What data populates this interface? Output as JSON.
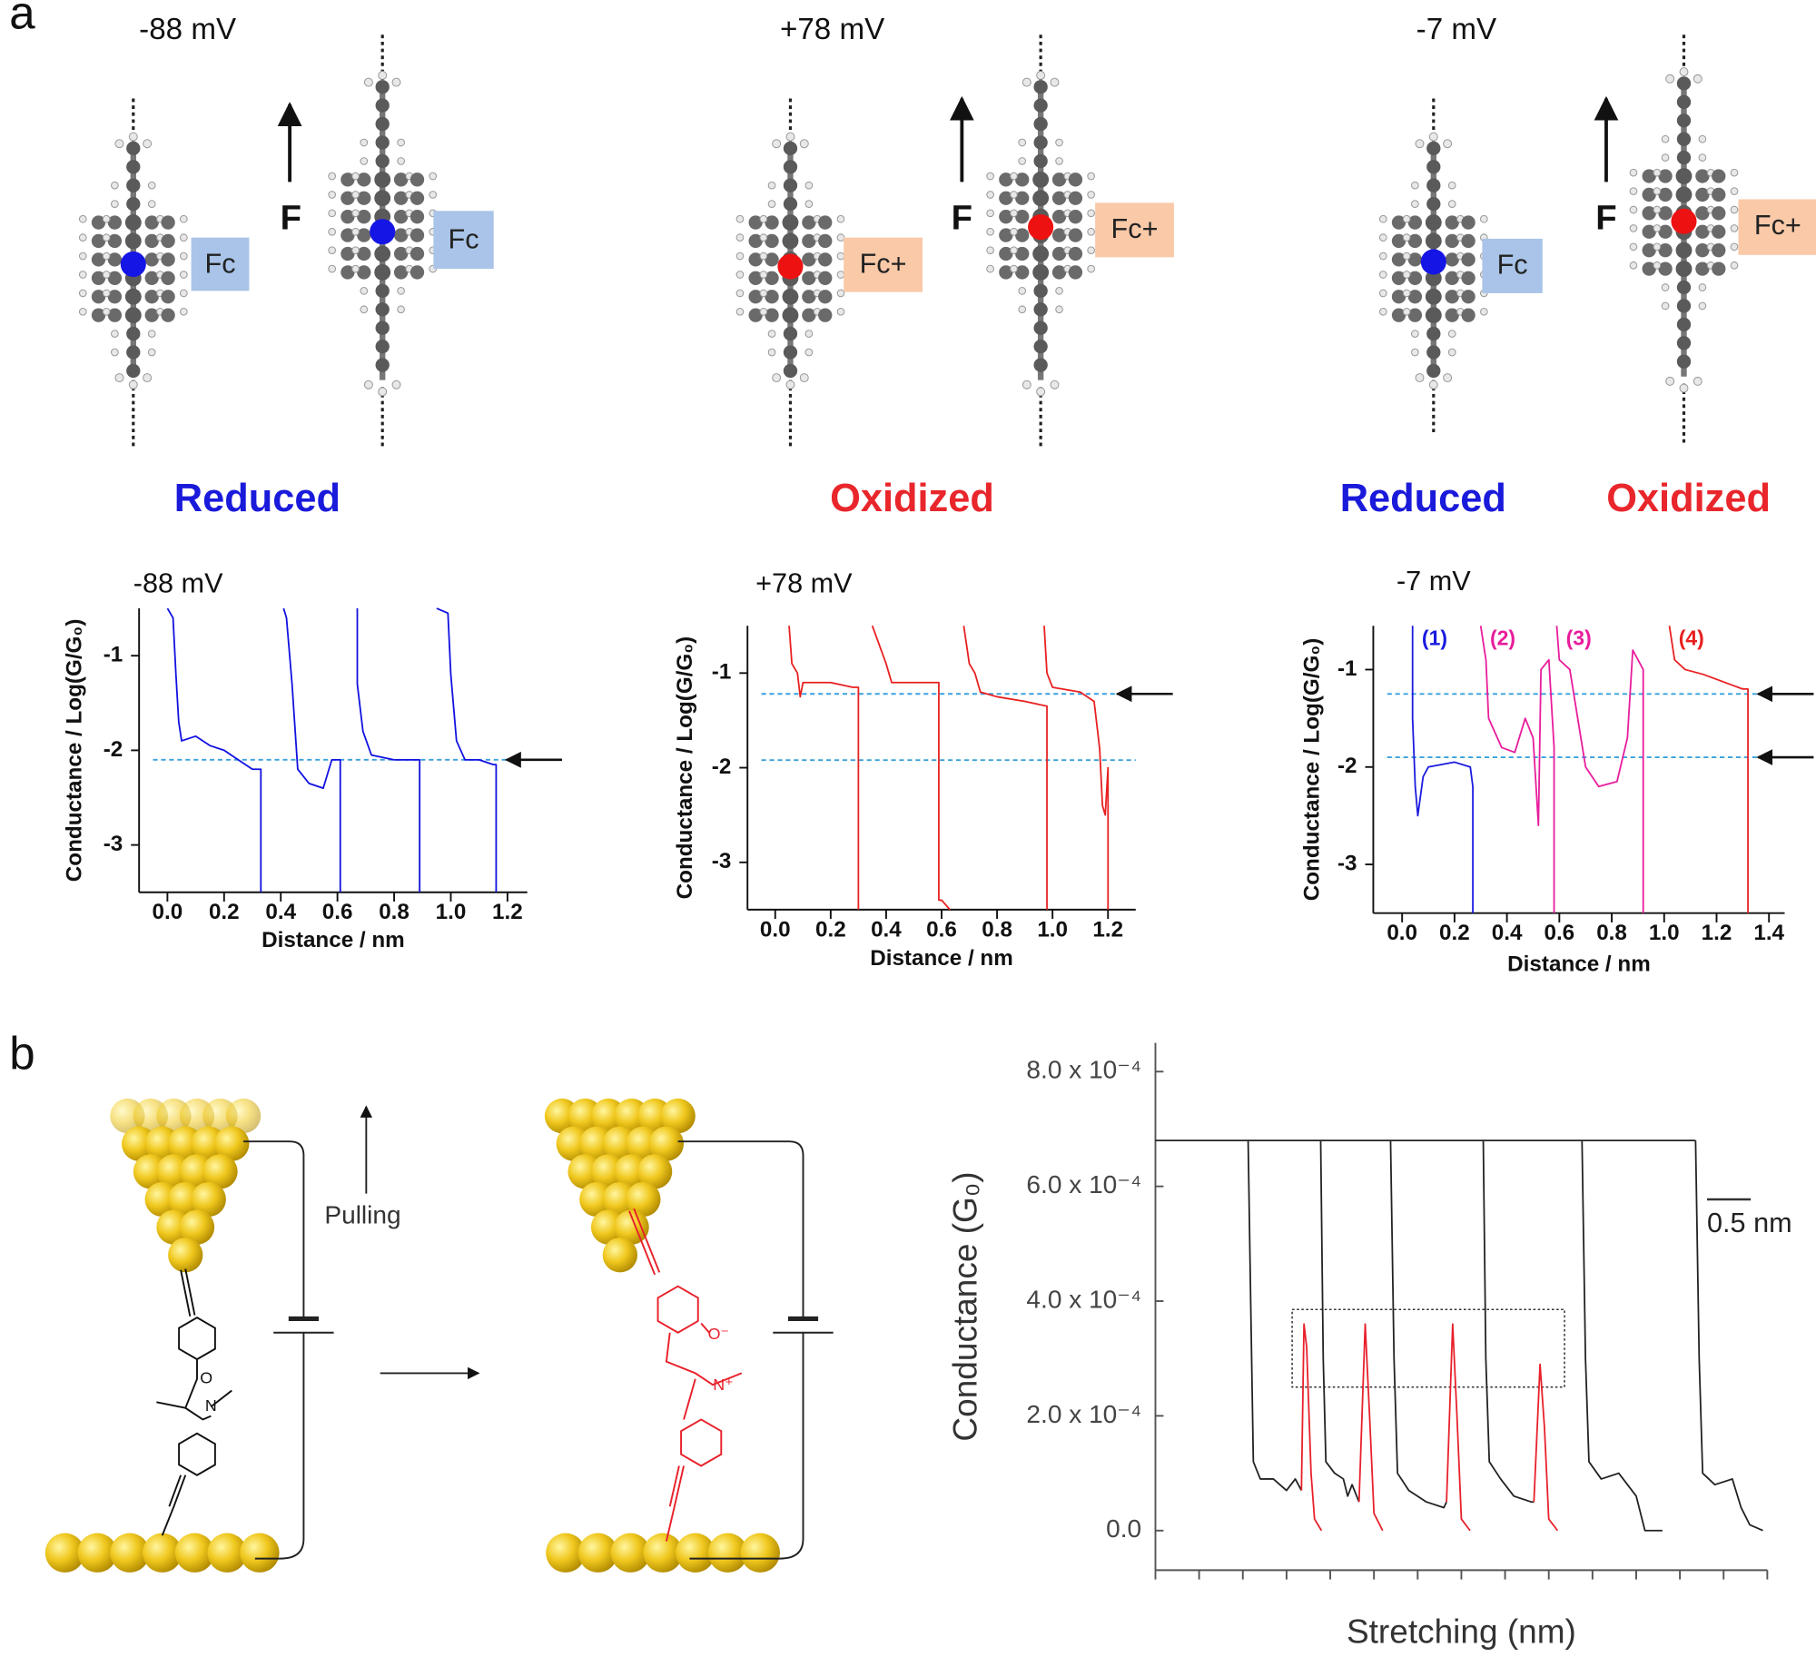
{
  "panel_labels": [
    "a",
    "b"
  ],
  "panel_a": {
    "potentials": [
      "-88 mV",
      "+78 mV",
      "-7 mV"
    ],
    "force_labels": [
      "F",
      "F",
      "F"
    ],
    "tags": [
      "Fc",
      "Fc",
      "Fc+",
      "Fc+",
      "Fc",
      "Fc+"
    ],
    "states": [
      "Reduced",
      "Oxidized",
      "Reduced",
      "Oxidized"
    ]
  },
  "panel_b": {
    "pulling": "Pulling",
    "atoms": [
      "O",
      "N",
      "O⁻",
      "N⁺"
    ]
  },
  "chart_data": [
    {
      "type": "line",
      "title": "-88 mV",
      "xlabel": "Distance / nm",
      "ylabel": "Conductance / Log(G/G₀)",
      "xlim": [
        -0.1,
        1.27
      ],
      "ylim": [
        -3.5,
        -0.5
      ],
      "xticks": [
        {
          "value": 0,
          "label": "0.0"
        },
        0.2,
        0.4,
        0.6,
        0.8,
        {
          "value": 1,
          "label": "1.0"
        },
        1.2
      ],
      "yticks": [
        -1,
        -2,
        -3
      ],
      "reference_lines": [
        -2.1
      ],
      "series": [
        {
          "color": "#1010e0",
          "x": [
            0.0,
            0.02,
            0.03,
            0.04,
            0.05,
            0.1,
            0.15,
            0.2,
            0.25,
            0.3,
            0.33,
            0.33
          ],
          "values": [
            -0.5,
            -0.6,
            -1.2,
            -1.7,
            -1.9,
            -1.85,
            -1.95,
            -2.0,
            -2.1,
            -2.2,
            -2.2,
            -3.5
          ]
        },
        {
          "color": "#1010e0",
          "x": [
            0.41,
            0.42,
            0.44,
            0.46,
            0.5,
            0.55,
            0.58,
            0.61,
            0.61
          ],
          "values": [
            -0.5,
            -0.6,
            -1.3,
            -2.2,
            -2.35,
            -2.4,
            -2.1,
            -2.1,
            -3.5
          ]
        },
        {
          "color": "#1010e0",
          "x": [
            0.67,
            0.67,
            0.69,
            0.72,
            0.8,
            0.88,
            0.89,
            0.89
          ],
          "values": [
            -0.5,
            -1.3,
            -1.8,
            -2.05,
            -2.1,
            -2.1,
            -2.1,
            -3.5
          ]
        },
        {
          "color": "#1010e0",
          "x": [
            0.95,
            0.99,
            1.0,
            1.02,
            1.05,
            1.1,
            1.15,
            1.16,
            1.16
          ],
          "values": [
            -0.5,
            -0.55,
            -1.2,
            -1.9,
            -2.1,
            -2.1,
            -2.15,
            -2.15,
            -3.5
          ]
        }
      ]
    },
    {
      "type": "line",
      "title": "+78 mV",
      "xlabel": "Distance / nm",
      "ylabel": "Conductance / Log(G/G₀)",
      "xlim": [
        -0.1,
        1.3
      ],
      "ylim": [
        -3.5,
        -0.5
      ],
      "xticks": [
        {
          "value": 0,
          "label": "0.0"
        },
        0.2,
        0.4,
        0.6,
        0.8,
        {
          "value": 1,
          "label": "1.0"
        },
        1.2
      ],
      "yticks": [
        -1,
        -2,
        -3
      ],
      "reference_lines": [
        -1.22,
        -1.92
      ],
      "series": [
        {
          "color": "#e82020",
          "x": [
            0.05,
            0.06,
            0.08,
            0.09,
            0.1,
            0.2,
            0.28,
            0.3,
            0.3
          ],
          "values": [
            -0.5,
            -0.9,
            -1.0,
            -1.25,
            -1.1,
            -1.1,
            -1.15,
            -1.15,
            -3.5
          ]
        },
        {
          "color": "#e82020",
          "x": [
            0.35,
            0.4,
            0.42,
            0.5,
            0.58,
            0.59,
            0.59,
            0.6,
            0.63
          ],
          "values": [
            -0.5,
            -0.9,
            -1.1,
            -1.1,
            -1.1,
            -1.1,
            -3.4,
            -3.4,
            -3.5
          ]
        },
        {
          "color": "#e82020",
          "x": [
            0.68,
            0.7,
            0.72,
            0.74,
            0.8,
            0.9,
            0.98,
            0.98
          ],
          "values": [
            -0.5,
            -0.9,
            -1.0,
            -1.2,
            -1.25,
            -1.3,
            -1.35,
            -3.5
          ]
        },
        {
          "color": "#e82020",
          "x": [
            0.97,
            0.98,
            1.0,
            1.1,
            1.15,
            1.17,
            1.18,
            1.19,
            1.2,
            1.2
          ],
          "values": [
            -0.5,
            -1.0,
            -1.15,
            -1.2,
            -1.3,
            -1.8,
            -2.4,
            -2.5,
            -2.0,
            -3.5
          ]
        }
      ]
    },
    {
      "type": "line",
      "title": "-7 mV",
      "xlabel": "Distance / nm",
      "ylabel": "Conductance / Log(G/G₀)",
      "xlim": [
        -0.11,
        1.46
      ],
      "ylim": [
        -3.5,
        -0.55
      ],
      "xticks": [
        {
          "value": 0,
          "label": "0.0"
        },
        0.2,
        0.4,
        0.6,
        0.8,
        {
          "value": 1,
          "label": "1.0"
        },
        1.2,
        1.4
      ],
      "yticks": [
        -1,
        -2,
        -3
      ],
      "reference_lines": [
        -1.25,
        -1.9
      ],
      "series": [
        {
          "name": "(1)",
          "color": "#1a1ae0",
          "x": [
            0.04,
            0.04,
            0.05,
            0.06,
            0.08,
            0.1,
            0.2,
            0.26,
            0.27,
            0.27
          ],
          "values": [
            -0.55,
            -1.5,
            -2.2,
            -2.5,
            -2.1,
            -2.0,
            -1.95,
            -2.0,
            -2.2,
            -3.5
          ]
        },
        {
          "name": "(2)",
          "color": "#e81c9c",
          "x": [
            0.3,
            0.32,
            0.33,
            0.38,
            0.43,
            0.47,
            0.5,
            0.52,
            0.53,
            0.56,
            0.58,
            0.58
          ],
          "values": [
            -0.55,
            -0.9,
            -1.5,
            -1.8,
            -1.85,
            -1.5,
            -1.7,
            -2.6,
            -1.0,
            -0.9,
            -1.8,
            -3.5
          ]
        },
        {
          "name": "(3)",
          "color": "#e81c9c",
          "x": [
            0.59,
            0.6,
            0.64,
            0.67,
            0.7,
            0.75,
            0.82,
            0.86,
            0.88,
            0.9,
            0.92,
            0.92
          ],
          "values": [
            -0.55,
            -0.9,
            -1.0,
            -1.5,
            -2.0,
            -2.2,
            -2.15,
            -1.7,
            -0.8,
            -0.9,
            -1.0,
            -3.5
          ]
        },
        {
          "name": "(4)",
          "color": "#e82020",
          "x": [
            1.02,
            1.04,
            1.08,
            1.15,
            1.25,
            1.3,
            1.32,
            1.32
          ],
          "values": [
            -0.55,
            -0.9,
            -1.0,
            -1.05,
            -1.15,
            -1.2,
            -1.2,
            -3.5
          ]
        }
      ]
    },
    {
      "type": "line",
      "xlabel": "Stretching (nm)",
      "ylabel": "Conductance (G₀)",
      "xlim": [
        0,
        7
      ],
      "ylim": [
        -6.9e-05,
        0.00085
      ],
      "xticks": [
        0,
        0.5,
        1,
        1.5,
        2,
        2.5,
        3,
        3.5,
        4,
        4.5,
        5,
        5.5,
        6,
        6.5,
        7
      ],
      "yticks": [
        {
          "value": 0,
          "label": "0.0"
        },
        {
          "value": 0.0002,
          "label": "2.0 x 10⁻⁴"
        },
        {
          "value": 0.0004,
          "label": "4.0 x 10⁻⁴"
        },
        {
          "value": 0.0006,
          "label": "6.0 x 10⁻⁴"
        },
        {
          "value": 0.0008,
          "label": "8.0 x 10⁻⁴"
        }
      ],
      "scale_bar": {
        "value": 0.5,
        "label": "0.5 nm"
      },
      "series": [
        {
          "color": "#222222",
          "x": [
            0,
            6.18
          ],
          "values": [
            0.00068,
            0.00068
          ]
        },
        {
          "color": "#222222",
          "x": [
            1.06,
            1.09,
            1.12,
            1.2,
            1.35,
            1.5,
            1.6,
            1.67
          ],
          "values": [
            0.00068,
            0.0004,
            0.00012,
            9e-05,
            9e-05,
            7e-05,
            9e-05,
            7e-05
          ]
        },
        {
          "color": "#e8202a",
          "x": [
            1.67,
            1.7,
            1.73,
            1.78,
            1.82,
            1.9
          ],
          "values": [
            7e-05,
            0.00036,
            0.00032,
            0.0001,
            2e-05,
            0
          ]
        },
        {
          "color": "#222222",
          "x": [
            1.89,
            1.92,
            1.95,
            2.05,
            2.15,
            2.2,
            2.25,
            2.33
          ],
          "values": [
            0.00068,
            0.0003,
            0.00012,
            0.0001,
            9e-05,
            6e-05,
            8e-05,
            5e-05
          ]
        },
        {
          "color": "#e8202a",
          "x": [
            2.33,
            2.4,
            2.45,
            2.5,
            2.6
          ],
          "values": [
            5e-05,
            0.00036,
            0.0002,
            3e-05,
            0
          ]
        },
        {
          "color": "#222222",
          "x": [
            2.69,
            2.73,
            2.77,
            2.9,
            3.1,
            3.3,
            3.33
          ],
          "values": [
            0.00068,
            0.0003,
            0.0001,
            7e-05,
            5e-05,
            4e-05,
            5e-05
          ]
        },
        {
          "color": "#e8202a",
          "x": [
            3.33,
            3.4,
            3.45,
            3.5,
            3.6
          ],
          "values": [
            5e-05,
            0.00036,
            0.0002,
            2e-05,
            0
          ]
        },
        {
          "color": "#222222",
          "x": [
            3.75,
            3.78,
            3.82,
            3.95,
            4.1,
            4.3,
            4.33
          ],
          "values": [
            0.00068,
            0.0003,
            0.00012,
            9e-05,
            6e-05,
            5e-05,
            5e-05
          ]
        },
        {
          "color": "#e8202a",
          "x": [
            4.33,
            4.4,
            4.45,
            4.5,
            4.6
          ],
          "values": [
            5e-05,
            0.00029,
            0.00018,
            2e-05,
            0
          ]
        },
        {
          "color": "#222222",
          "x": [
            4.88,
            4.92,
            4.96,
            5.1,
            5.3,
            5.5,
            5.6,
            5.8
          ],
          "values": [
            0.00068,
            0.0003,
            0.00012,
            9e-05,
            0.0001,
            6e-05,
            0,
            0
          ]
        },
        {
          "color": "#222222",
          "x": [
            6.18,
            6.22,
            6.26,
            6.4,
            6.6,
            6.7,
            6.8,
            6.95
          ],
          "values": [
            0.00068,
            0.0003,
            0.0001,
            8e-05,
            9e-05,
            4e-05,
            1e-05,
            0
          ]
        }
      ]
    }
  ]
}
